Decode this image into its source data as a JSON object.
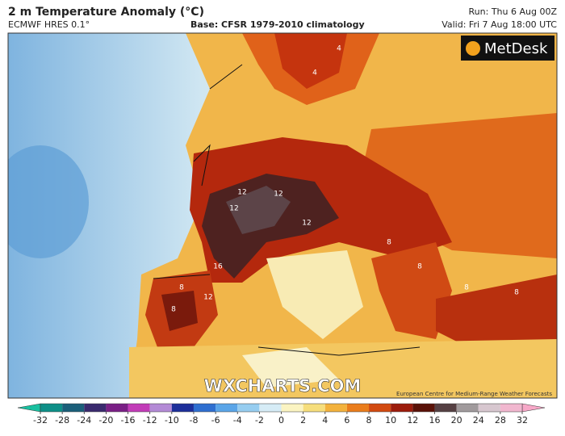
{
  "header": {
    "title": "2 m Temperature Anomaly (°C)",
    "model": "ECMWF HRES 0.1°",
    "base": "Base: CFSR 1979-2010 climatology",
    "run": "Run: Thu 6 Aug 00Z",
    "valid": "Valid: Fri 7 Aug 18:00 UTC"
  },
  "map": {
    "logo": "MetDesk",
    "watermark": "WXCHARTS.COM",
    "credit": "European Centre for Medium-Range Weather Forecasts",
    "contour_labels": [
      "12",
      "12",
      "12",
      "12",
      "16",
      "12",
      "8",
      "8",
      "8",
      "8",
      "4",
      "8",
      "8",
      "4"
    ]
  },
  "colorbar": {
    "ticks": [
      -32,
      -28,
      -24,
      -20,
      -16,
      -12,
      -10,
      -8,
      -6,
      -4,
      -2,
      0,
      2,
      4,
      6,
      8,
      10,
      12,
      16,
      20,
      24,
      28,
      32
    ],
    "low_color": "#19c0a0",
    "high_color": "#f7a8c8",
    "colors": [
      "#0e8f88",
      "#1b5f7a",
      "#3a2a6e",
      "#7a1f86",
      "#c23cb8",
      "#b38ad6",
      "#1d2f9a",
      "#2f6fd0",
      "#5aa5e8",
      "#96cdf0",
      "#d6ecf6",
      "#fbf4c2",
      "#f6de7c",
      "#f3b23c",
      "#ea7d1c",
      "#d24a10",
      "#9c1c0c",
      "#5a1208",
      "#554043",
      "#a09a9c",
      "#d7c7cf",
      "#f1b7cf"
    ]
  }
}
